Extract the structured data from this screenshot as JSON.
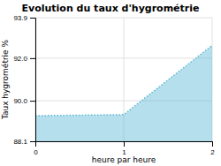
{
  "chart_data": {
    "type": "area",
    "title": "Evolution du taux d'hygrométrie",
    "xlabel": "heure par heure",
    "ylabel": "Taux hygrométrie %",
    "x": [
      0,
      1,
      2
    ],
    "values": [
      89.3,
      89.35,
      92.6
    ],
    "color": "#5bb8d4",
    "line_style": "dotted",
    "xlim": [
      0,
      2
    ],
    "xticks": [
      0,
      1,
      2
    ],
    "ylim": [
      88.1,
      93.9
    ],
    "yticks": [
      88.1,
      {
        "value": 90,
        "label": "90.0"
      },
      {
        "value": 92,
        "label": "92.0"
      },
      93.9
    ],
    "grid": true
  }
}
